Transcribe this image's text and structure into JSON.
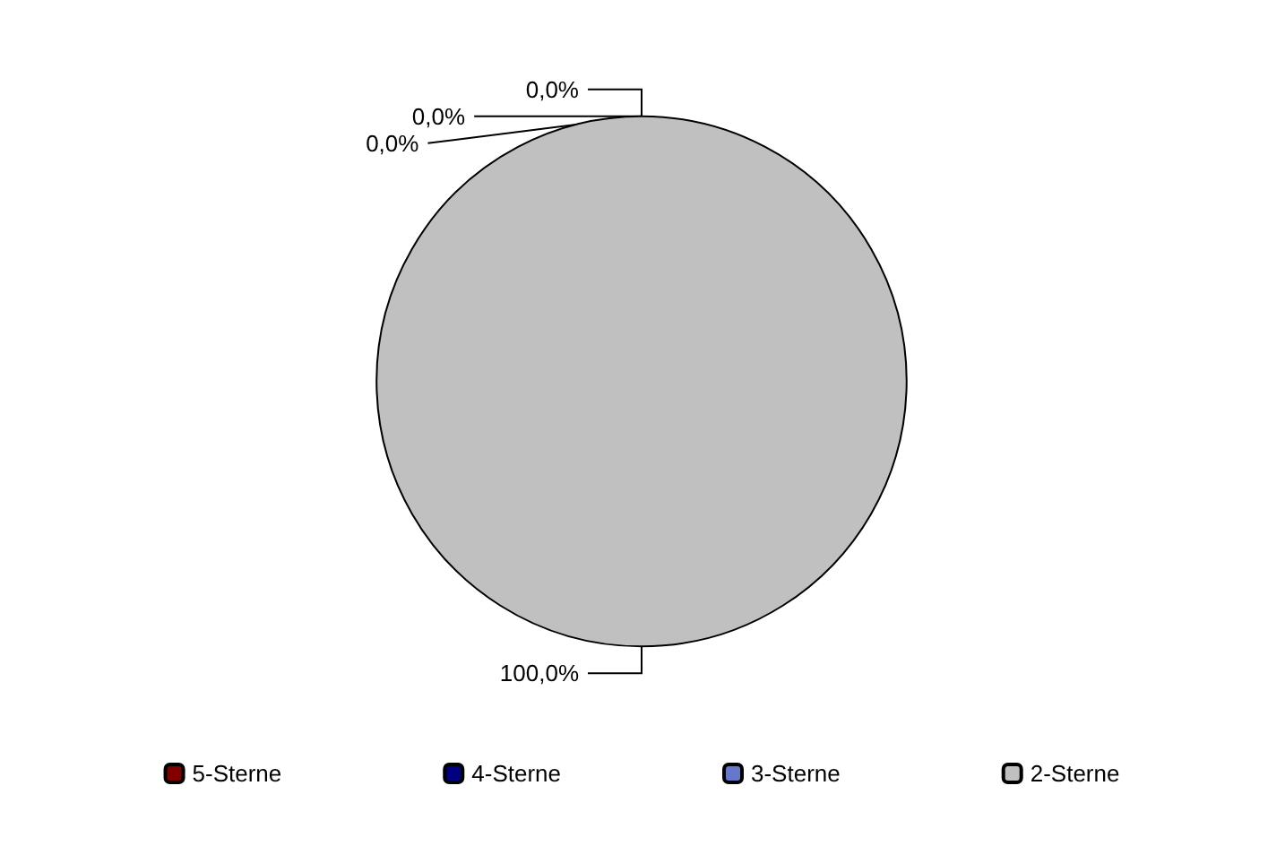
{
  "chart_data": {
    "type": "pie",
    "categories": [
      "5-Sterne",
      "4-Sterne",
      "3-Sterne",
      "2-Sterne"
    ],
    "values": [
      0,
      0,
      0,
      100
    ],
    "colors": [
      "#800000",
      "#000080",
      "#6677cc",
      "#c0c0c0"
    ],
    "value_labels": [
      "0,0%",
      "0,0%",
      "0,0%",
      "100,0%"
    ],
    "legend": "bottom"
  }
}
